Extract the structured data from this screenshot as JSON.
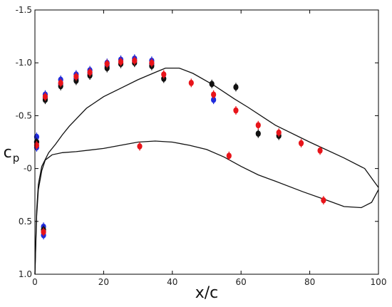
{
  "chart_data": {
    "type": "scatter",
    "title": "",
    "xlabel": "x/c",
    "ylabel_main": "c",
    "ylabel_sub": "p",
    "xlim": [
      0,
      100
    ],
    "ylim": [
      1.0,
      -1.5
    ],
    "y_inverted": true,
    "grid": false,
    "legend": "none",
    "x_ticks": [
      "0",
      "20",
      "40",
      "60",
      "80",
      "100"
    ],
    "y_ticks": [
      "-1.5",
      "-1.0",
      "-0.5",
      "-0",
      "0.5",
      "1.0"
    ],
    "x_tick_values": [
      0,
      20,
      40,
      60,
      80,
      100
    ],
    "y_tick_values": [
      -1.5,
      -1.0,
      -0.5,
      0,
      0.5,
      1.0
    ],
    "line_color": "#222222",
    "series": [
      {
        "color": "#111111",
        "style": "line",
        "points": [
          [
            0,
            1.0
          ],
          [
            0.5,
            0.4
          ],
          [
            1,
            0.15
          ],
          [
            2,
            -0.02
          ],
          [
            4,
            -0.15
          ],
          [
            6,
            -0.23
          ],
          [
            8,
            -0.32
          ],
          [
            10,
            -0.4
          ],
          [
            15,
            -0.57
          ],
          [
            20,
            -0.68
          ],
          [
            25,
            -0.76
          ],
          [
            30,
            -0.84
          ],
          [
            35,
            -0.91
          ],
          [
            38,
            -0.95
          ],
          [
            42,
            -0.95
          ],
          [
            46,
            -0.9
          ],
          [
            52,
            -0.79
          ],
          [
            58,
            -0.66
          ],
          [
            62,
            -0.58
          ],
          [
            70,
            -0.41
          ],
          [
            80,
            -0.25
          ],
          [
            90,
            -0.1
          ],
          [
            96,
            0.0
          ],
          [
            100,
            0.18
          ]
        ]
      },
      {
        "color": "#111111",
        "style": "line",
        "points": [
          [
            0,
            1.0
          ],
          [
            0.5,
            0.45
          ],
          [
            1,
            0.2
          ],
          [
            2,
            0.02
          ],
          [
            3,
            -0.08
          ],
          [
            5,
            -0.13
          ],
          [
            8,
            -0.15
          ],
          [
            12,
            -0.16
          ],
          [
            20,
            -0.19
          ],
          [
            30,
            -0.25
          ],
          [
            35,
            -0.26
          ],
          [
            40,
            -0.25
          ],
          [
            45,
            -0.22
          ],
          [
            50,
            -0.18
          ],
          [
            55,
            -0.11
          ],
          [
            60,
            -0.02
          ],
          [
            65,
            0.06
          ],
          [
            70,
            0.12
          ],
          [
            78,
            0.22
          ],
          [
            85,
            0.3
          ],
          [
            90,
            0.36
          ],
          [
            95,
            0.37
          ],
          [
            98,
            0.32
          ],
          [
            100,
            0.2
          ]
        ]
      },
      {
        "color": "#1f2bdc",
        "style": "points",
        "points": [
          [
            0.5,
            -0.2
          ],
          [
            0.5,
            -0.25
          ],
          [
            0.5,
            -0.3
          ],
          [
            2.5,
            0.55
          ],
          [
            2.5,
            0.6
          ],
          [
            2.5,
            0.63
          ],
          [
            3,
            -0.67
          ],
          [
            3,
            -0.7
          ],
          [
            7.5,
            -0.8
          ],
          [
            7.5,
            -0.84
          ],
          [
            12,
            -0.85
          ],
          [
            12,
            -0.89
          ],
          [
            16,
            -0.9
          ],
          [
            16,
            -0.93
          ],
          [
            21,
            -0.97
          ],
          [
            21,
            -1.0
          ],
          [
            25,
            -1.0
          ],
          [
            25,
            -1.03
          ],
          [
            29,
            -1.02
          ],
          [
            29,
            -1.04
          ],
          [
            34,
            -0.99
          ],
          [
            34,
            -1.02
          ],
          [
            52,
            -0.65
          ]
        ]
      },
      {
        "color": "#111111",
        "style": "points",
        "points": [
          [
            0.5,
            -0.25
          ],
          [
            2.5,
            0.58
          ],
          [
            3,
            -0.65
          ],
          [
            7.5,
            -0.78
          ],
          [
            12,
            -0.83
          ],
          [
            16,
            -0.88
          ],
          [
            21,
            -0.95
          ],
          [
            25,
            -0.99
          ],
          [
            29,
            -1.0
          ],
          [
            34,
            -0.97
          ],
          [
            37.5,
            -0.85
          ],
          [
            51.5,
            -0.8
          ],
          [
            58.5,
            -0.77
          ],
          [
            65,
            -0.33
          ],
          [
            71,
            -0.31
          ]
        ]
      },
      {
        "color": "#e8141a",
        "style": "points",
        "points": [
          [
            0.5,
            -0.22
          ],
          [
            2.5,
            0.6
          ],
          [
            3,
            -0.68
          ],
          [
            7.5,
            -0.81
          ],
          [
            12,
            -0.87
          ],
          [
            16,
            -0.91
          ],
          [
            21,
            -0.99
          ],
          [
            25,
            -1.01
          ],
          [
            29,
            -1.02
          ],
          [
            34,
            -1.0
          ],
          [
            37.5,
            -0.89
          ],
          [
            30.5,
            -0.21
          ],
          [
            45.5,
            -0.81
          ],
          [
            52,
            -0.7
          ],
          [
            56.5,
            -0.12
          ],
          [
            58.5,
            -0.55
          ],
          [
            65,
            -0.41
          ],
          [
            71,
            -0.34
          ],
          [
            77.5,
            -0.24
          ],
          [
            83,
            -0.17
          ],
          [
            84,
            0.3
          ]
        ]
      }
    ]
  }
}
